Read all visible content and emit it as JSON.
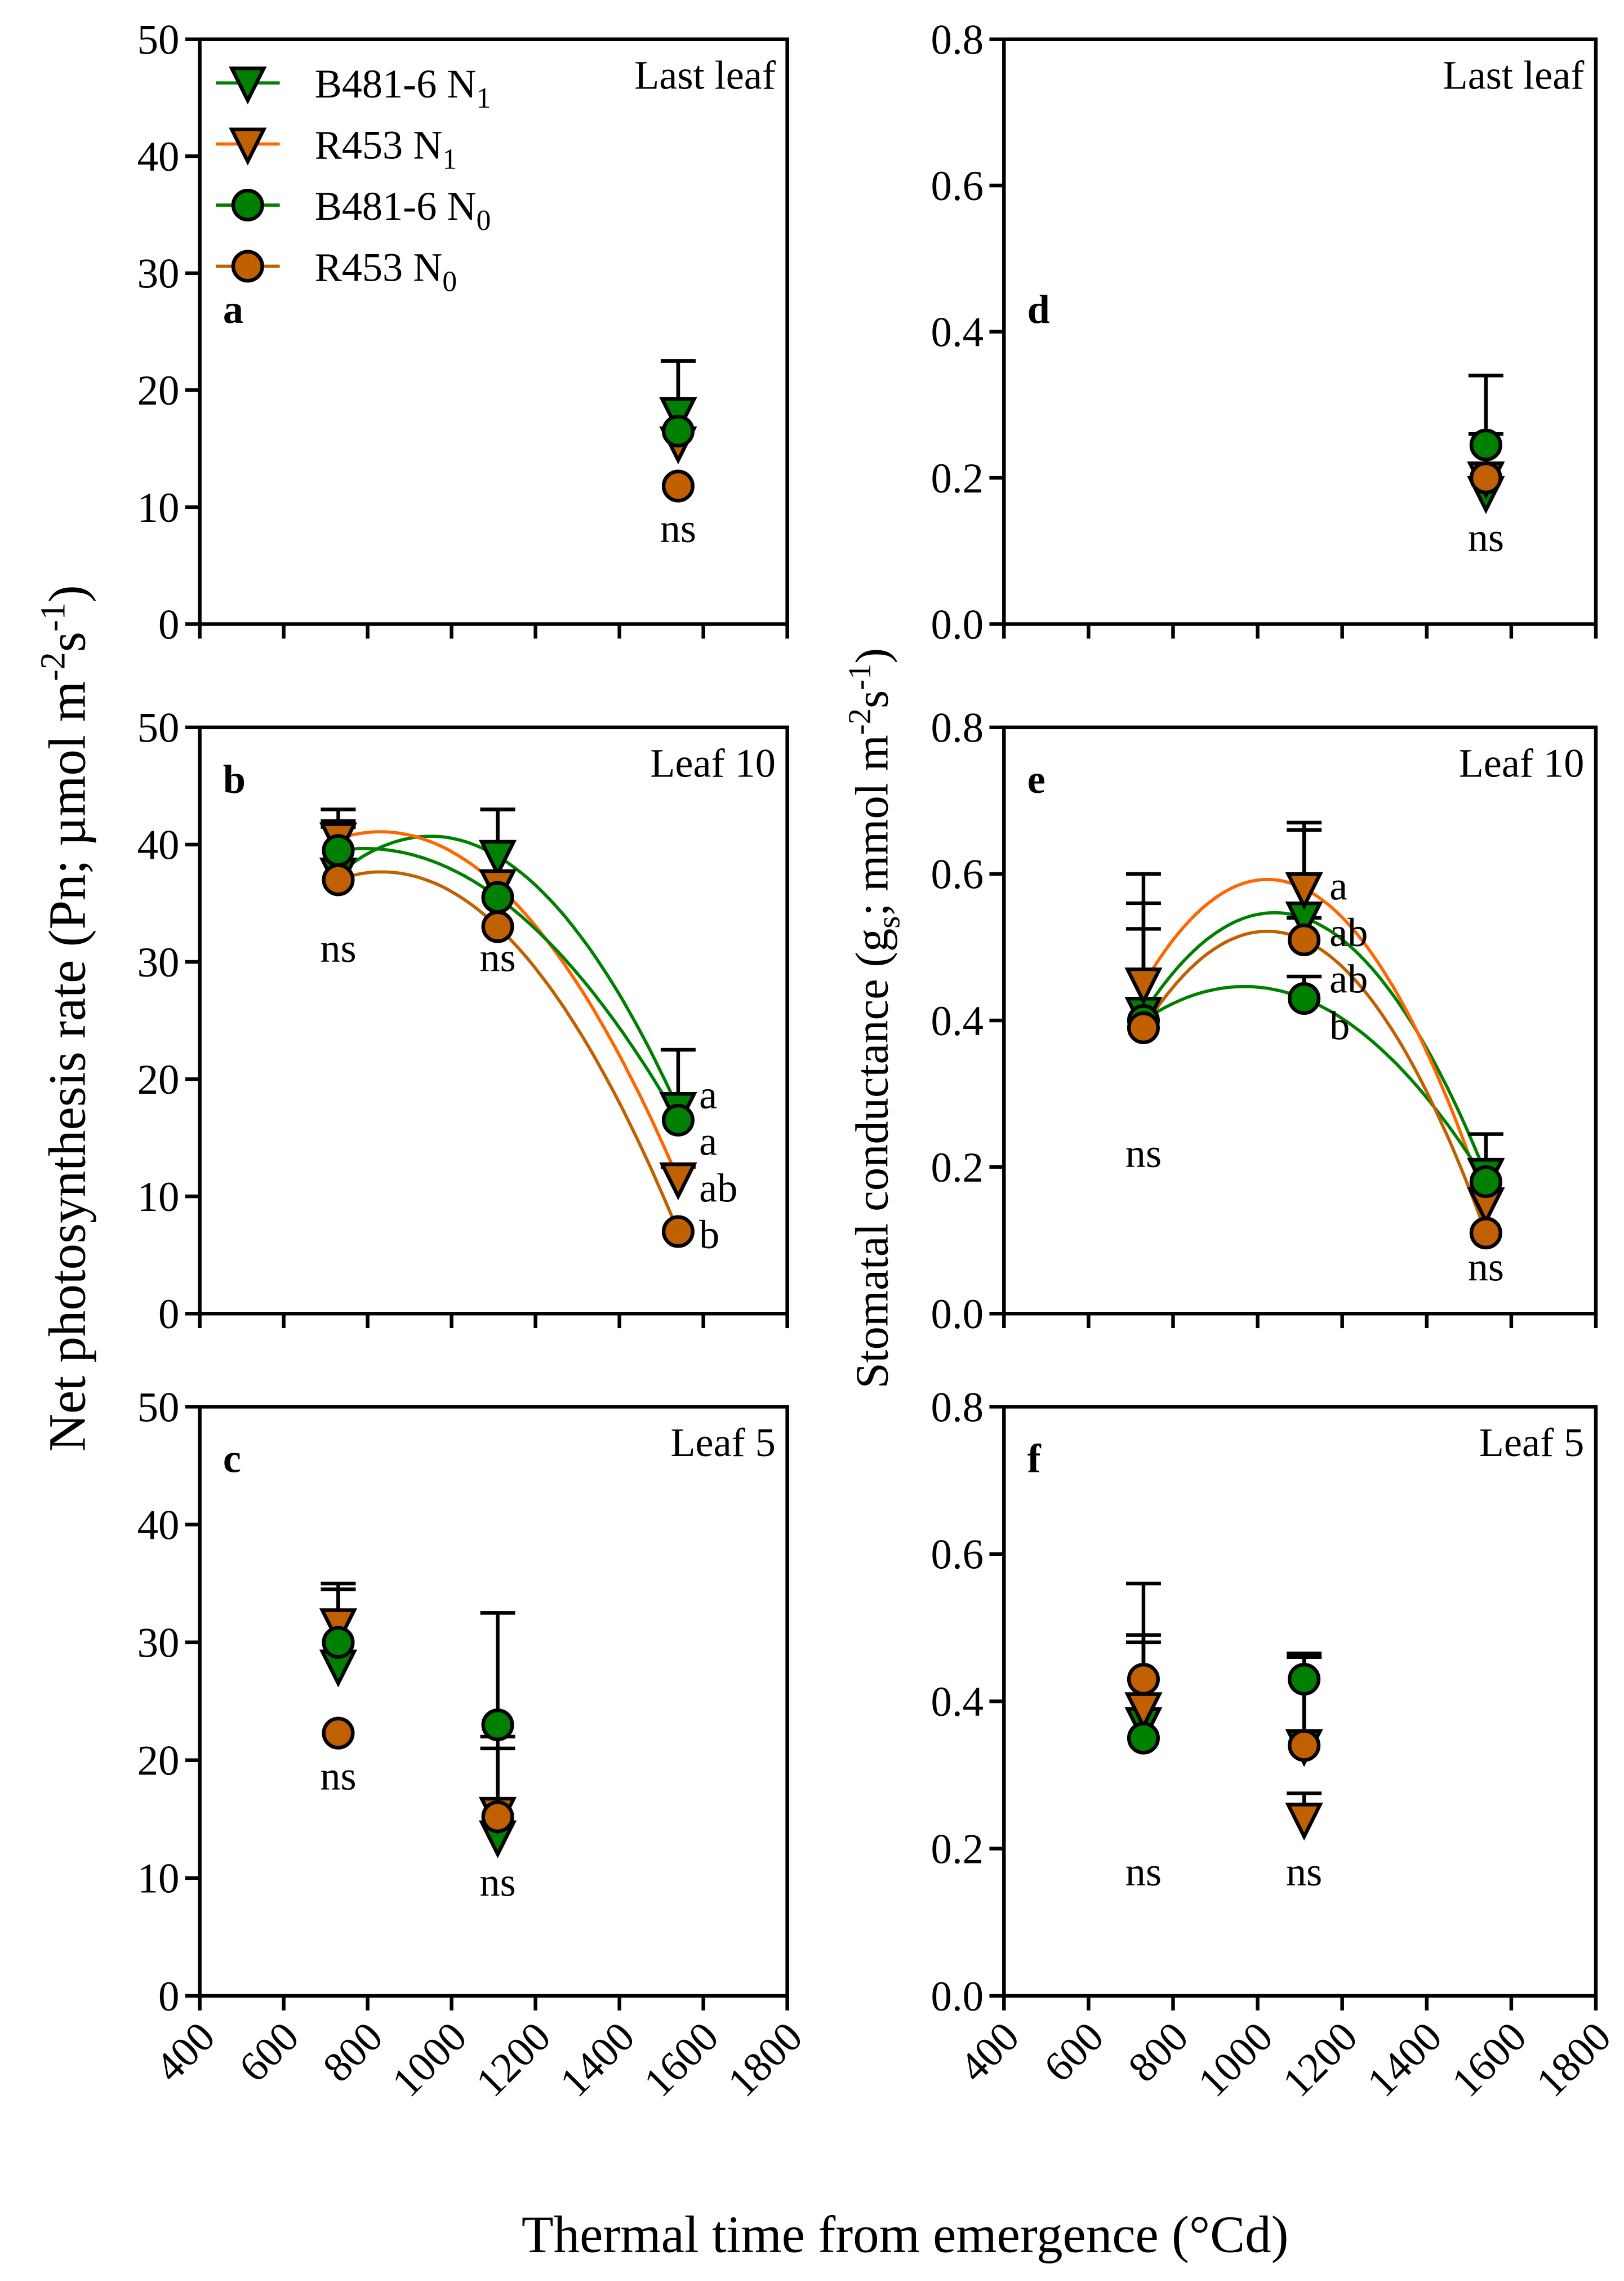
{
  "chart_data": [
    {
      "id": "a",
      "type": "scatter",
      "title": "Last leaf",
      "panel_label": "a",
      "ylim": [
        0,
        50
      ],
      "yticks": [
        "0",
        "10",
        "20",
        "30",
        "40",
        "50"
      ],
      "xlim": [
        400,
        1800
      ],
      "points": [
        {
          "series": 0,
          "x": 1540,
          "y": 18,
          "err": 4.5
        },
        {
          "series": 1,
          "x": 1540,
          "y": 15.5,
          "err": 0
        },
        {
          "series": 2,
          "x": 1540,
          "y": 16.5,
          "err": 6
        },
        {
          "series": 3,
          "x": 1540,
          "y": 11.8,
          "err": 0
        }
      ],
      "fit": false,
      "annotations": [
        {
          "x": 1540,
          "y": 7,
          "text": "ns"
        }
      ]
    },
    {
      "id": "b",
      "type": "line",
      "title": "Leaf 10",
      "panel_label": "b",
      "ylim": [
        0,
        50
      ],
      "yticks": [
        "0",
        "10",
        "20",
        "30",
        "40",
        "50"
      ],
      "xlim": [
        400,
        1800
      ],
      "points": [
        {
          "series": 0,
          "x": 730,
          "y": 37.5,
          "err": 5.5
        },
        {
          "series": 1,
          "x": 730,
          "y": 40.5,
          "err": 0
        },
        {
          "series": 2,
          "x": 730,
          "y": 39.5,
          "err": 2.5
        },
        {
          "series": 3,
          "x": 730,
          "y": 37,
          "err": 4.5
        },
        {
          "series": 0,
          "x": 1110,
          "y": 39,
          "err": 4
        },
        {
          "series": 1,
          "x": 1110,
          "y": 36.5,
          "err": 6.5
        },
        {
          "series": 2,
          "x": 1110,
          "y": 35.5,
          "err": 0
        },
        {
          "series": 3,
          "x": 1110,
          "y": 33,
          "err": 0
        },
        {
          "series": 0,
          "x": 1540,
          "y": 17.5,
          "err": 5
        },
        {
          "series": 1,
          "x": 1540,
          "y": 11.5,
          "err": 1
        },
        {
          "series": 2,
          "x": 1540,
          "y": 16.5,
          "err": 0
        },
        {
          "series": 3,
          "x": 1540,
          "y": 7,
          "err": 0
        }
      ],
      "fit": true,
      "annotations": [
        {
          "x": 730,
          "y": 30,
          "text": "ns"
        },
        {
          "x": 1110,
          "y": 29.2,
          "text": "ns"
        },
        {
          "x": 1590,
          "y": 17.5,
          "text": "a"
        },
        {
          "x": 1590,
          "y": 15,
          "text": "a"
        },
        {
          "x": 1590,
          "y": 10.5,
          "text": "ab"
        },
        {
          "x": 1590,
          "y": 6,
          "text": "b"
        }
      ]
    },
    {
      "id": "c",
      "type": "scatter",
      "title": "Leaf 5",
      "panel_label": "c",
      "ylim": [
        0,
        50
      ],
      "yticks": [
        "0",
        "10",
        "20",
        "30",
        "40",
        "50"
      ],
      "xlim": [
        400,
        1800
      ],
      "points": [
        {
          "series": 0,
          "x": 730,
          "y": 28,
          "err": 6.5
        },
        {
          "series": 1,
          "x": 730,
          "y": 31.5,
          "err": 3
        },
        {
          "series": 2,
          "x": 730,
          "y": 30,
          "err": 5
        },
        {
          "series": 3,
          "x": 730,
          "y": 22.3,
          "err": 0
        },
        {
          "series": 0,
          "x": 1110,
          "y": 13.5,
          "err": 0
        },
        {
          "series": 1,
          "x": 1110,
          "y": 15.5,
          "err": 5.5
        },
        {
          "series": 2,
          "x": 1110,
          "y": 23,
          "err": 9.5
        },
        {
          "series": 3,
          "x": 1110,
          "y": 15.2,
          "err": 6.8
        }
      ],
      "fit": false,
      "annotations": [
        {
          "x": 730,
          "y": 17.5,
          "text": "ns"
        },
        {
          "x": 1110,
          "y": 8.5,
          "text": "ns"
        }
      ]
    },
    {
      "id": "d",
      "type": "scatter",
      "title": "Last leaf",
      "panel_label": "d",
      "ylim": [
        0,
        0.8
      ],
      "yticks": [
        "0.0",
        "0.2",
        "0.4",
        "0.6",
        "0.8"
      ],
      "xlim": [
        400,
        1800
      ],
      "points": [
        {
          "series": 0,
          "x": 1540,
          "y": 0.18,
          "err": 0.04
        },
        {
          "series": 1,
          "x": 1540,
          "y": 0.2,
          "err": 0.06
        },
        {
          "series": 2,
          "x": 1540,
          "y": 0.245,
          "err": 0.095
        },
        {
          "series": 3,
          "x": 1540,
          "y": 0.2,
          "err": 0
        }
      ],
      "fit": false,
      "annotations": [
        {
          "x": 1540,
          "y": 0.1,
          "text": "ns"
        }
      ]
    },
    {
      "id": "e",
      "type": "line",
      "title": "Leaf 10",
      "panel_label": "e",
      "ylim": [
        0,
        0.8
      ],
      "yticks": [
        "0.0",
        "0.2",
        "0.4",
        "0.6",
        "0.8"
      ],
      "xlim": [
        400,
        1800
      ],
      "points": [
        {
          "series": 0,
          "x": 730,
          "y": 0.41,
          "err": 0.15
        },
        {
          "series": 1,
          "x": 730,
          "y": 0.45,
          "err": 0.15
        },
        {
          "series": 2,
          "x": 730,
          "y": 0.4,
          "err": 0
        },
        {
          "series": 3,
          "x": 730,
          "y": 0.39,
          "err": 0.135
        },
        {
          "series": 0,
          "x": 1110,
          "y": 0.54,
          "err": 0.12
        },
        {
          "series": 1,
          "x": 1110,
          "y": 0.58,
          "err": 0.09
        },
        {
          "series": 2,
          "x": 1110,
          "y": 0.43,
          "err": 0.03
        },
        {
          "series": 3,
          "x": 1110,
          "y": 0.51,
          "err": 0.03
        },
        {
          "series": 0,
          "x": 1540,
          "y": 0.19,
          "err": 0.055
        },
        {
          "series": 1,
          "x": 1540,
          "y": 0.15,
          "err": 0
        },
        {
          "series": 2,
          "x": 1540,
          "y": 0.18,
          "err": 0.03
        },
        {
          "series": 3,
          "x": 1540,
          "y": 0.11,
          "err": 0
        }
      ],
      "fit": true,
      "annotations": [
        {
          "x": 730,
          "y": 0.2,
          "text": "ns"
        },
        {
          "x": 1540,
          "y": 0.045,
          "text": "ns"
        },
        {
          "x": 1170,
          "y": 0.565,
          "text": "a"
        },
        {
          "x": 1170,
          "y": 0.515,
          "text": "ab"
        },
        {
          "x": 1170,
          "y": 0.475,
          "text": "ab"
        },
        {
          "x": 1170,
          "y": 0.405,
          "text": "b"
        }
      ]
    },
    {
      "id": "f",
      "type": "scatter",
      "title": "Leaf 5",
      "panel_label": "f",
      "ylim": [
        0,
        0.8
      ],
      "yticks": [
        "0.0",
        "0.2",
        "0.4",
        "0.6",
        "0.8"
      ],
      "xlim": [
        400,
        1800
      ],
      "points": [
        {
          "series": 0,
          "x": 730,
          "y": 0.37,
          "err": 0.12
        },
        {
          "series": 1,
          "x": 730,
          "y": 0.39,
          "err": 0.09
        },
        {
          "series": 2,
          "x": 730,
          "y": 0.35,
          "err": 0
        },
        {
          "series": 3,
          "x": 730,
          "y": 0.43,
          "err": 0.13
        },
        {
          "series": 0,
          "x": 1110,
          "y": 0.34,
          "err": 0.12
        },
        {
          "series": 1,
          "x": 1110,
          "y": 0.24,
          "err": 0.035
        },
        {
          "series": 2,
          "x": 1110,
          "y": 0.43,
          "err": 0.035
        },
        {
          "series": 3,
          "x": 1110,
          "y": 0.34,
          "err": 0.12
        }
      ],
      "fit": false,
      "annotations": [
        {
          "x": 730,
          "y": 0.15,
          "text": "ns"
        },
        {
          "x": 1110,
          "y": 0.15,
          "text": "ns"
        }
      ]
    }
  ],
  "series": [
    {
      "name": "B481-6 N",
      "sub": "1",
      "marker": "triangle-down",
      "fill": "#008000",
      "line": "#008000"
    },
    {
      "name": "R453 N",
      "sub": "1",
      "marker": "triangle-down",
      "fill": "#c06000",
      "line": "#ff6600"
    },
    {
      "name": "B481-6 N",
      "sub": "0",
      "marker": "circle",
      "fill": "#008000",
      "line": "#008000"
    },
    {
      "name": "R453 N",
      "sub": "0",
      "marker": "circle",
      "fill": "#c06000",
      "line": "#c06000"
    }
  ],
  "xticks": [
    "400",
    "600",
    "800",
    "1000",
    "1200",
    "1400",
    "1600",
    "1800"
  ],
  "xlabel": "Thermal time from emergence (°Cd)",
  "ylabel_left": {
    "main": "Net photosynthesis rate (Pn; µmol m",
    "sup1": "-2",
    "mid": "s",
    "sup2": "-1",
    "end": ")"
  },
  "ylabel_right": {
    "pre": "Stomatal conductance (g",
    "sub": "s",
    "main": "; mmol m",
    "sup1": "-2",
    "mid": "s",
    "sup2": "-1",
    "end": ")"
  }
}
